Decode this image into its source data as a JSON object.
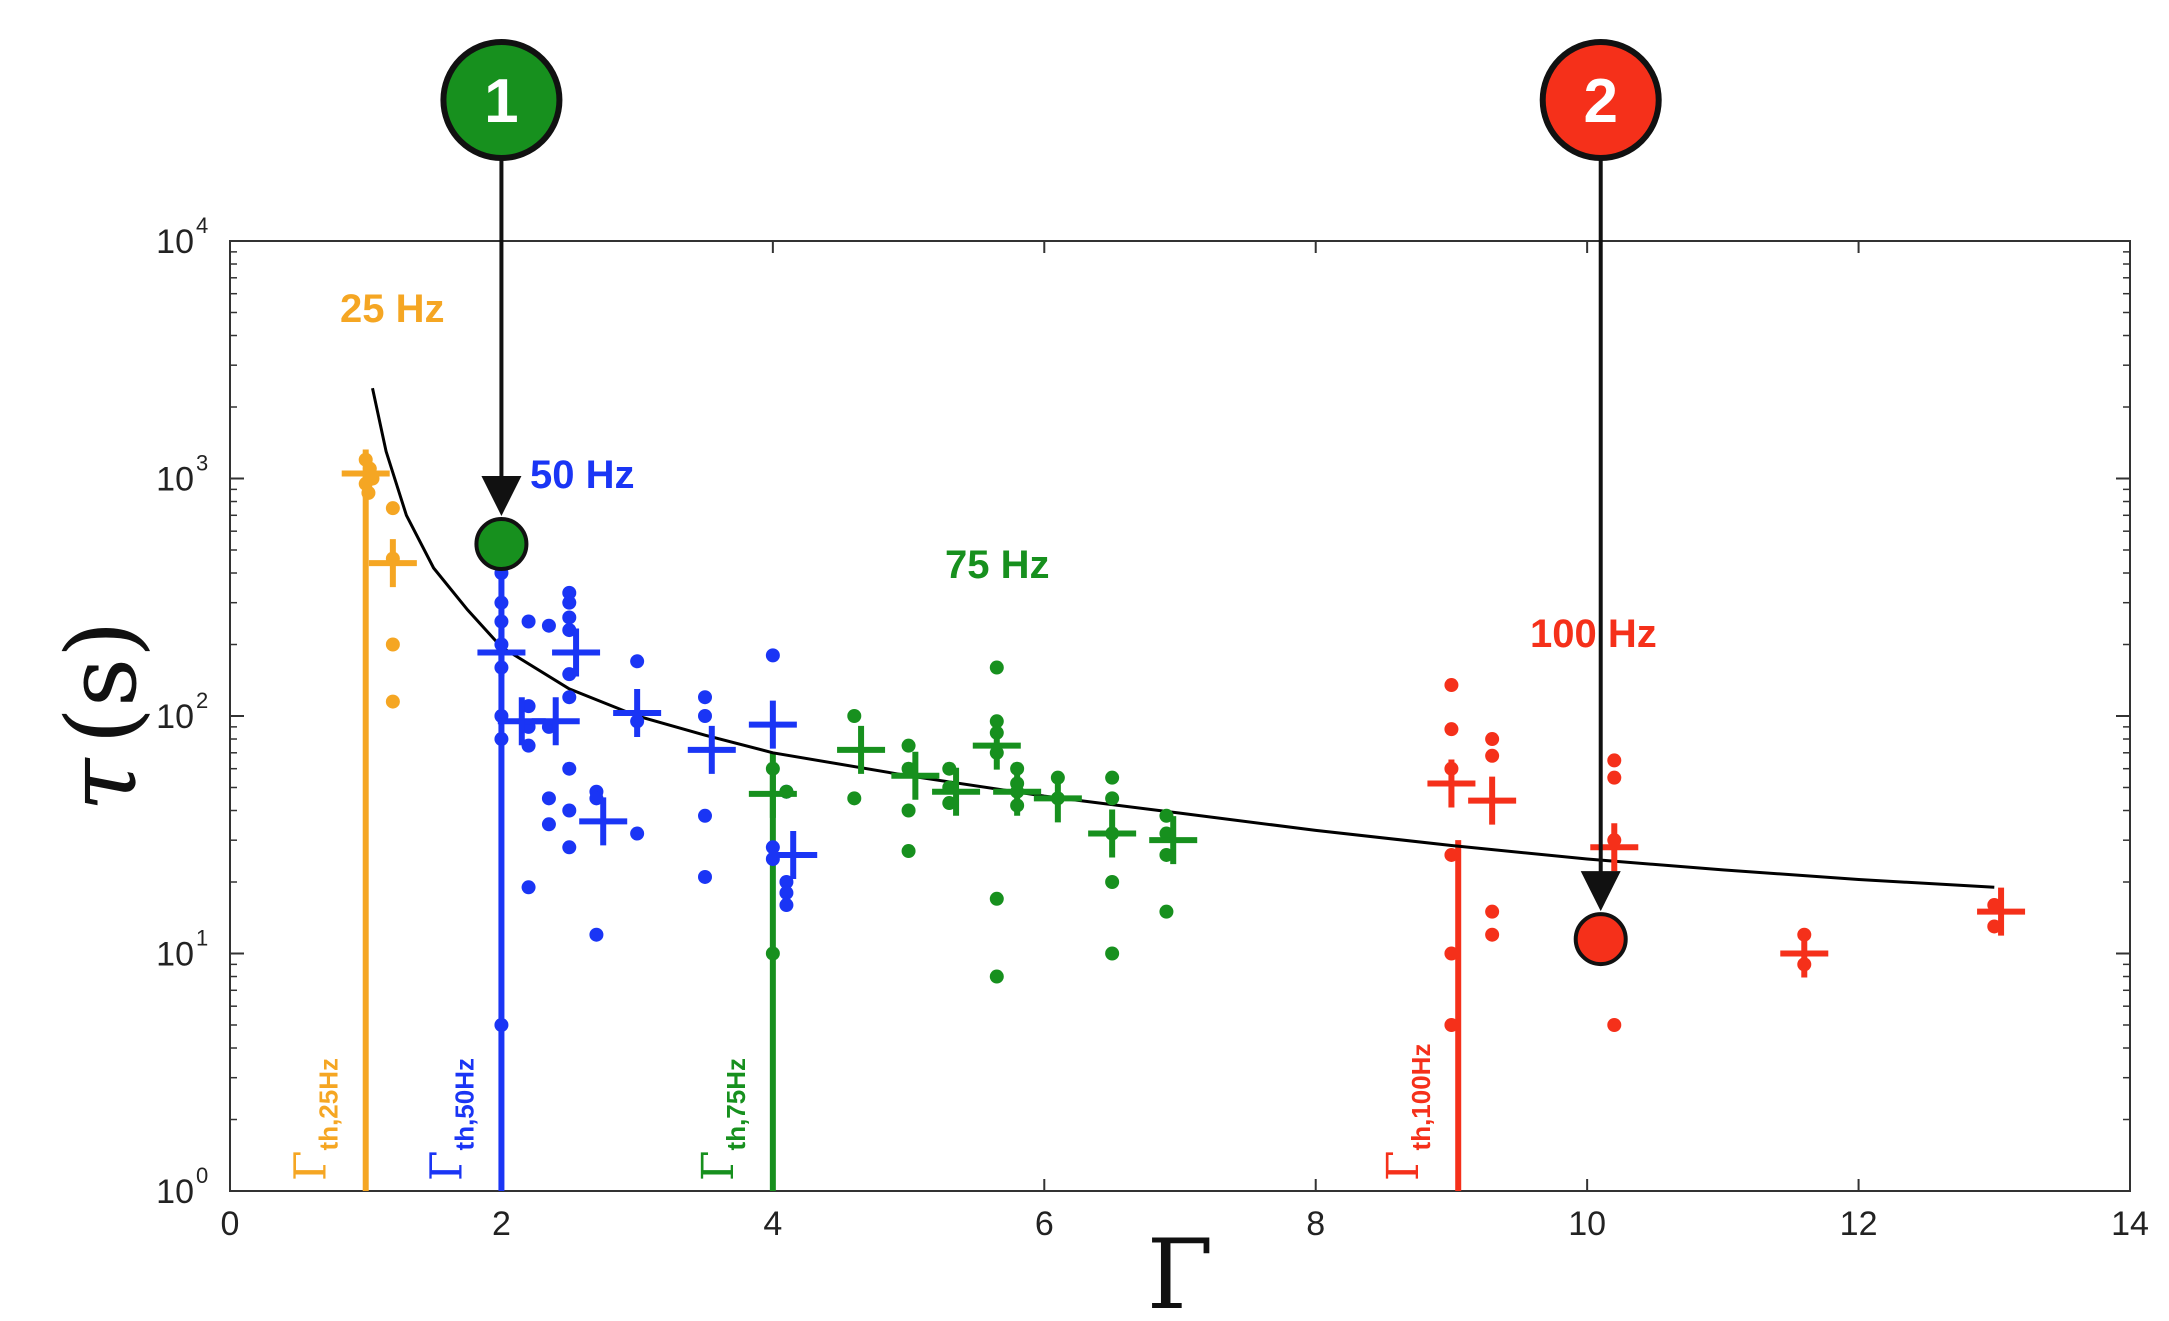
{
  "chart_data": {
    "type": "scatter",
    "title": "",
    "xlabel": "Γ",
    "ylabel": {
      "symbol": "τ",
      "unit": "s"
    },
    "xlim": [
      0,
      14
    ],
    "ylim": [
      1,
      10000
    ],
    "yscale": "log",
    "x_ticks": [
      {
        "v": 0,
        "label": "0"
      },
      {
        "v": 2,
        "label": "2"
      },
      {
        "v": 4,
        "label": "4"
      },
      {
        "v": 6,
        "label": "6"
      },
      {
        "v": 8,
        "label": "8"
      },
      {
        "v": 10,
        "label": "10"
      },
      {
        "v": 12,
        "label": "12"
      },
      {
        "v": 14,
        "label": "14"
      }
    ],
    "y_ticks": [
      {
        "v": 1,
        "base": "10",
        "exp": "0"
      },
      {
        "v": 10,
        "base": "10",
        "exp": "1"
      },
      {
        "v": 100,
        "base": "10",
        "exp": "2"
      },
      {
        "v": 1000,
        "base": "10",
        "exp": "3"
      },
      {
        "v": 10000,
        "base": "10",
        "exp": "4"
      }
    ],
    "grid": false,
    "colors": {
      "f25": "#f5a623",
      "f50": "#1a35f5",
      "f75": "#17901e",
      "f100": "#f5301a",
      "fit": "#000000"
    },
    "series": [
      {
        "key": "f25",
        "label": "25 Hz",
        "dots": [
          [
            1.0,
            1200
          ],
          [
            1.03,
            1100
          ],
          [
            1.05,
            1000
          ],
          [
            1.0,
            950
          ],
          [
            1.02,
            870
          ],
          [
            1.2,
            750
          ],
          [
            1.2,
            460
          ],
          [
            1.2,
            200
          ],
          [
            1.2,
            115
          ]
        ],
        "means": [
          [
            1.0,
            1050
          ],
          [
            1.2,
            440
          ]
        ]
      },
      {
        "key": "f50",
        "label": "50 Hz",
        "dots": [
          [
            2.0,
            400
          ],
          [
            2.0,
            300
          ],
          [
            2.0,
            250
          ],
          [
            2.0,
            200
          ],
          [
            2.0,
            160
          ],
          [
            2.0,
            100
          ],
          [
            2.0,
            80
          ],
          [
            2.0,
            5
          ],
          [
            2.2,
            250
          ],
          [
            2.2,
            110
          ],
          [
            2.2,
            90
          ],
          [
            2.2,
            75
          ],
          [
            2.2,
            19
          ],
          [
            2.35,
            240
          ],
          [
            2.35,
            90
          ],
          [
            2.35,
            45
          ],
          [
            2.35,
            35
          ],
          [
            2.5,
            330
          ],
          [
            2.5,
            300
          ],
          [
            2.5,
            260
          ],
          [
            2.5,
            230
          ],
          [
            2.5,
            150
          ],
          [
            2.5,
            120
          ],
          [
            2.5,
            60
          ],
          [
            2.5,
            40
          ],
          [
            2.5,
            28
          ],
          [
            2.7,
            48
          ],
          [
            2.7,
            45
          ],
          [
            2.7,
            12
          ],
          [
            3.0,
            170
          ],
          [
            3.0,
            95
          ],
          [
            3.0,
            32
          ],
          [
            3.5,
            120
          ],
          [
            3.5,
            100
          ],
          [
            3.5,
            38
          ],
          [
            3.5,
            21
          ],
          [
            4.0,
            180
          ],
          [
            4.0,
            28
          ],
          [
            4.0,
            25
          ],
          [
            4.1,
            48
          ],
          [
            4.1,
            20
          ],
          [
            4.1,
            18
          ],
          [
            4.1,
            16
          ]
        ],
        "means": [
          [
            2.0,
            185
          ],
          [
            2.15,
            95
          ],
          [
            2.4,
            95
          ],
          [
            2.55,
            185
          ],
          [
            2.75,
            36
          ],
          [
            3.0,
            103
          ],
          [
            3.55,
            72
          ],
          [
            4.0,
            92
          ],
          [
            4.15,
            26
          ]
        ]
      },
      {
        "key": "f75",
        "label": "75 Hz",
        "dots": [
          [
            4.0,
            60
          ],
          [
            4.0,
            10
          ],
          [
            4.1,
            48
          ],
          [
            4.6,
            100
          ],
          [
            4.6,
            45
          ],
          [
            5.0,
            75
          ],
          [
            5.0,
            60
          ],
          [
            5.0,
            40
          ],
          [
            5.0,
            27
          ],
          [
            5.3,
            60
          ],
          [
            5.3,
            50
          ],
          [
            5.3,
            43
          ],
          [
            5.65,
            160
          ],
          [
            5.65,
            95
          ],
          [
            5.65,
            85
          ],
          [
            5.65,
            70
          ],
          [
            5.65,
            17
          ],
          [
            5.65,
            8
          ],
          [
            5.8,
            60
          ],
          [
            5.8,
            52
          ],
          [
            5.8,
            48
          ],
          [
            5.8,
            42
          ],
          [
            6.1,
            55
          ],
          [
            6.1,
            45
          ],
          [
            6.5,
            55
          ],
          [
            6.5,
            45
          ],
          [
            6.5,
            32
          ],
          [
            6.5,
            20
          ],
          [
            6.5,
            10
          ],
          [
            6.9,
            38
          ],
          [
            6.9,
            32
          ],
          [
            6.9,
            26
          ],
          [
            6.9,
            15
          ]
        ],
        "means": [
          [
            4.0,
            47
          ],
          [
            4.65,
            72
          ],
          [
            5.05,
            56
          ],
          [
            5.35,
            48
          ],
          [
            5.65,
            75
          ],
          [
            5.8,
            48
          ],
          [
            6.1,
            45
          ],
          [
            6.5,
            32
          ],
          [
            6.95,
            30
          ]
        ]
      },
      {
        "key": "f100",
        "label": "100 Hz",
        "dots": [
          [
            9.0,
            135
          ],
          [
            9.0,
            88
          ],
          [
            9.0,
            60
          ],
          [
            9.0,
            26
          ],
          [
            9.0,
            10
          ],
          [
            9.0,
            5
          ],
          [
            9.3,
            80
          ],
          [
            9.3,
            68
          ],
          [
            9.3,
            15
          ],
          [
            9.3,
            12
          ],
          [
            10.2,
            65
          ],
          [
            10.2,
            55
          ],
          [
            10.2,
            30
          ],
          [
            10.2,
            5
          ],
          [
            11.6,
            12
          ],
          [
            11.6,
            9
          ],
          [
            13.0,
            16
          ],
          [
            13.0,
            13
          ]
        ],
        "means": [
          [
            9.0,
            52
          ],
          [
            9.3,
            44
          ],
          [
            10.2,
            28
          ],
          [
            11.6,
            10
          ],
          [
            13.05,
            15
          ]
        ]
      }
    ],
    "fit_curve": {
      "type": "power-law",
      "samples": [
        [
          1.05,
          2400
        ],
        [
          1.15,
          1300
        ],
        [
          1.3,
          700
        ],
        [
          1.5,
          420
        ],
        [
          1.75,
          280
        ],
        [
          2.0,
          195
        ],
        [
          2.5,
          130
        ],
        [
          3.0,
          100
        ],
        [
          3.5,
          83
        ],
        [
          4.0,
          70
        ],
        [
          5.0,
          56
        ],
        [
          6.0,
          46
        ],
        [
          7.0,
          39
        ],
        [
          8.0,
          33
        ],
        [
          9.0,
          28.5
        ],
        [
          10.0,
          25
        ],
        [
          11.0,
          22.5
        ],
        [
          12.0,
          20.5
        ],
        [
          13.0,
          19
        ]
      ]
    },
    "thresholds": [
      {
        "key": "f25",
        "x": 1.0,
        "y_top": 1050,
        "symbol": "Γ",
        "sub": "th,25Hz"
      },
      {
        "key": "f50",
        "x": 2.0,
        "y_top": 500,
        "symbol": "Γ",
        "sub": "th,50Hz"
      },
      {
        "key": "f75",
        "x": 4.0,
        "y_top": 70,
        "symbol": "Γ",
        "sub": "th,75Hz"
      },
      {
        "key": "f100",
        "x": 9.05,
        "y_top": 30,
        "symbol": "Γ",
        "sub": "th,100Hz"
      }
    ],
    "annotations": [
      {
        "number": "1",
        "color": "#17901e",
        "x": 2.0,
        "y": 530
      },
      {
        "number": "2",
        "color": "#f5301a",
        "x": 10.1,
        "y": 11.5
      }
    ]
  }
}
